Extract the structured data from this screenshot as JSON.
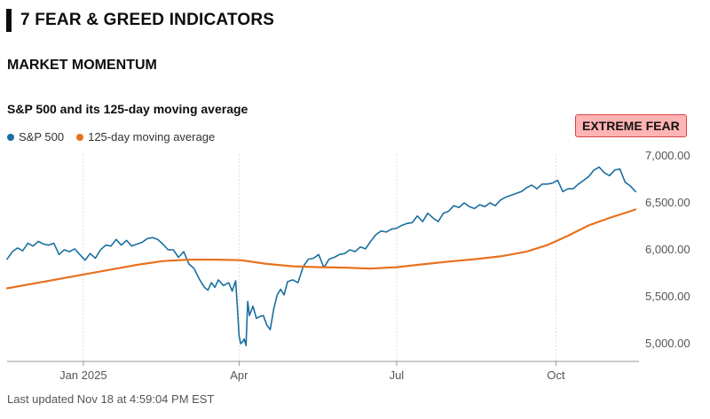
{
  "section": {
    "title": "7 FEAR & GREED INDICATORS"
  },
  "indicator": {
    "title": "MARKET MOMENTUM"
  },
  "chart_title": "S&P 500 and its 125-day moving average",
  "legend": [
    {
      "label": "S&P 500",
      "color": "#1a6fa0"
    },
    {
      "label": "125-day moving average",
      "color": "#e8711e"
    }
  ],
  "badge": {
    "label": "EXTREME FEAR",
    "bg": "#ffb3b3",
    "border": "#d24545"
  },
  "footer": {
    "updated": "Last updated Nov 18 at 4:59:04 PM EST"
  },
  "chart_data": {
    "type": "line",
    "title": "S&P 500 and its 125-day moving average",
    "x_unit": "days since 2024-11-18",
    "xlim": [
      0,
      365
    ],
    "ylim": [
      4800,
      7000
    ],
    "y_ticks": [
      5000,
      5500,
      6000,
      6500,
      7000
    ],
    "y_tick_labels": [
      "5,000.00",
      "5,500.00",
      "6,000.00",
      "6,500.00",
      "7,000.00"
    ],
    "x_ticks": [
      {
        "label": "Jan 2025",
        "x": 44
      },
      {
        "label": "Apr",
        "x": 134
      },
      {
        "label": "Jul",
        "x": 225
      },
      {
        "label": "Oct",
        "x": 317
      }
    ],
    "grid": "vertical at x ticks",
    "series": [
      {
        "name": "S&P 500",
        "color": "#1a6fa0",
        "points": [
          [
            0,
            5900
          ],
          [
            3,
            5980
          ],
          [
            6,
            6020
          ],
          [
            9,
            5990
          ],
          [
            12,
            6070
          ],
          [
            15,
            6040
          ],
          [
            18,
            6090
          ],
          [
            21,
            6060
          ],
          [
            24,
            6050
          ],
          [
            27,
            6070
          ],
          [
            30,
            5950
          ],
          [
            33,
            6000
          ],
          [
            36,
            5980
          ],
          [
            39,
            6010
          ],
          [
            42,
            5950
          ],
          [
            45,
            5890
          ],
          [
            48,
            5960
          ],
          [
            51,
            5910
          ],
          [
            54,
            6000
          ],
          [
            57,
            6050
          ],
          [
            60,
            6040
          ],
          [
            63,
            6110
          ],
          [
            66,
            6050
          ],
          [
            69,
            6100
          ],
          [
            72,
            6040
          ],
          [
            75,
            6060
          ],
          [
            78,
            6080
          ],
          [
            81,
            6120
          ],
          [
            84,
            6130
          ],
          [
            87,
            6110
          ],
          [
            90,
            6060
          ],
          [
            93,
            6000
          ],
          [
            96,
            6000
          ],
          [
            99,
            5920
          ],
          [
            102,
            5980
          ],
          [
            105,
            5850
          ],
          [
            108,
            5800
          ],
          [
            111,
            5690
          ],
          [
            114,
            5600
          ],
          [
            116,
            5570
          ],
          [
            118,
            5650
          ],
          [
            120,
            5600
          ],
          [
            122,
            5680
          ],
          [
            125,
            5620
          ],
          [
            128,
            5650
          ],
          [
            130,
            5560
          ],
          [
            132,
            5670
          ],
          [
            133,
            5400
          ],
          [
            134,
            5080
          ],
          [
            135,
            5000
          ],
          [
            136,
            5020
          ],
          [
            137,
            5050
          ],
          [
            138,
            4980
          ],
          [
            139,
            5450
          ],
          [
            140,
            5300
          ],
          [
            142,
            5400
          ],
          [
            144,
            5270
          ],
          [
            146,
            5290
          ],
          [
            148,
            5300
          ],
          [
            150,
            5200
          ],
          [
            152,
            5150
          ],
          [
            154,
            5370
          ],
          [
            156,
            5520
          ],
          [
            158,
            5580
          ],
          [
            160,
            5520
          ],
          [
            162,
            5660
          ],
          [
            165,
            5680
          ],
          [
            168,
            5650
          ],
          [
            171,
            5820
          ],
          [
            174,
            5900
          ],
          [
            177,
            5910
          ],
          [
            180,
            5950
          ],
          [
            183,
            5810
          ],
          [
            186,
            5900
          ],
          [
            189,
            5920
          ],
          [
            192,
            5950
          ],
          [
            195,
            5960
          ],
          [
            198,
            6000
          ],
          [
            201,
            5980
          ],
          [
            204,
            6030
          ],
          [
            207,
            6010
          ],
          [
            210,
            6090
          ],
          [
            213,
            6160
          ],
          [
            216,
            6200
          ],
          [
            219,
            6190
          ],
          [
            222,
            6220
          ],
          [
            225,
            6230
          ],
          [
            228,
            6260
          ],
          [
            231,
            6280
          ],
          [
            234,
            6290
          ],
          [
            237,
            6360
          ],
          [
            240,
            6300
          ],
          [
            243,
            6390
          ],
          [
            246,
            6340
          ],
          [
            249,
            6300
          ],
          [
            252,
            6390
          ],
          [
            255,
            6410
          ],
          [
            258,
            6470
          ],
          [
            261,
            6450
          ],
          [
            264,
            6500
          ],
          [
            267,
            6460
          ],
          [
            270,
            6440
          ],
          [
            273,
            6480
          ],
          [
            276,
            6460
          ],
          [
            279,
            6500
          ],
          [
            282,
            6470
          ],
          [
            285,
            6530
          ],
          [
            288,
            6560
          ],
          [
            291,
            6580
          ],
          [
            294,
            6600
          ],
          [
            297,
            6620
          ],
          [
            300,
            6660
          ],
          [
            303,
            6690
          ],
          [
            306,
            6650
          ],
          [
            309,
            6700
          ],
          [
            312,
            6700
          ],
          [
            315,
            6710
          ],
          [
            318,
            6740
          ],
          [
            320,
            6660
          ],
          [
            321,
            6620
          ],
          [
            324,
            6650
          ],
          [
            327,
            6650
          ],
          [
            330,
            6700
          ],
          [
            333,
            6740
          ],
          [
            336,
            6780
          ],
          [
            339,
            6850
          ],
          [
            342,
            6880
          ],
          [
            345,
            6820
          ],
          [
            348,
            6790
          ],
          [
            351,
            6850
          ],
          [
            354,
            6860
          ],
          [
            357,
            6720
          ],
          [
            360,
            6680
          ],
          [
            363,
            6620
          ]
        ]
      },
      {
        "name": "125-day moving average",
        "color": "#e8711e",
        "points": [
          [
            0,
            5590
          ],
          [
            15,
            5640
          ],
          [
            30,
            5690
          ],
          [
            45,
            5740
          ],
          [
            60,
            5790
          ],
          [
            75,
            5840
          ],
          [
            90,
            5880
          ],
          [
            105,
            5895
          ],
          [
            120,
            5895
          ],
          [
            135,
            5890
          ],
          [
            150,
            5850
          ],
          [
            165,
            5825
          ],
          [
            180,
            5815
          ],
          [
            195,
            5810
          ],
          [
            210,
            5800
          ],
          [
            225,
            5815
          ],
          [
            240,
            5845
          ],
          [
            255,
            5875
          ],
          [
            270,
            5900
          ],
          [
            285,
            5930
          ],
          [
            300,
            5980
          ],
          [
            312,
            6050
          ],
          [
            324,
            6150
          ],
          [
            336,
            6260
          ],
          [
            348,
            6340
          ],
          [
            360,
            6410
          ],
          [
            363,
            6430
          ]
        ]
      }
    ]
  }
}
